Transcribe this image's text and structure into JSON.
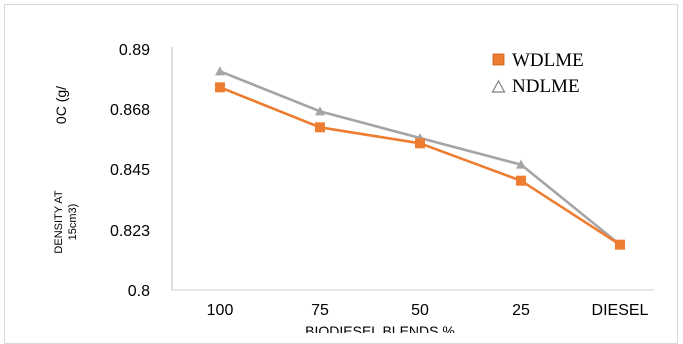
{
  "chart_data": {
    "type": "line",
    "categories": [
      "100",
      "75",
      "50",
      "25",
      "DIESEL"
    ],
    "series": [
      {
        "name": "WDLME",
        "values": [
          0.876,
          0.861,
          0.855,
          0.841,
          0.817
        ],
        "color": "#ED7D31",
        "marker": "square"
      },
      {
        "name": "NDLME",
        "values": [
          0.882,
          0.867,
          0.857,
          0.847,
          0.817
        ],
        "color": "#A5A5A5",
        "marker": "triangle"
      }
    ],
    "yticks": [
      "0.8",
      "0.823",
      "0.845",
      "0.868",
      "0.89"
    ],
    "ylim": [
      0.8,
      0.89
    ],
    "ylabel_lines": [
      "DENSITY AT",
      "15cm3)",
      "0C (g/"
    ],
    "xlabel": "BIODIESEL BLENDS %",
    "legend_position": "top-right",
    "grid": false
  }
}
